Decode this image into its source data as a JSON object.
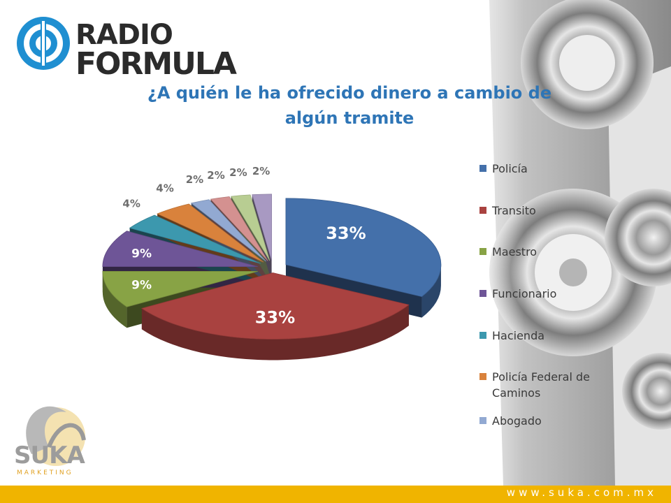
{
  "brand": {
    "line1": "RADIO",
    "line2": "FORMULA"
  },
  "title_lines": [
    "¿A quién le ha ofrecido dinero a cambio de",
    "algún tramite"
  ],
  "suka": {
    "name": "SUKA",
    "sub": "MARKETING"
  },
  "footer": {
    "url": "www.suka.com.mx"
  },
  "chart_data": {
    "type": "pie",
    "title": "¿A quién le ha ofrecido dinero a cambio de algún tramite",
    "categories": [
      "Policía",
      "Transito",
      "Maestro",
      "Funcionario",
      "Hacienda",
      "Policía Federal de Caminos",
      "Abogado",
      "",
      "",
      ""
    ],
    "values": [
      33,
      33,
      9,
      9,
      4,
      4,
      2,
      2,
      2,
      2
    ],
    "data_labels": [
      "33%",
      "33%",
      "9%",
      "9%",
      "4%",
      "4%",
      "2%",
      "2%",
      "2%",
      "2%"
    ],
    "legend_entries": [
      "Policía",
      "Transito",
      "Maestro",
      "Funcionario",
      "Hacienda",
      "Policía Federal de Caminos",
      "Abogado"
    ],
    "colors": [
      "#4470aa",
      "#a94240",
      "#88a345",
      "#6e5597",
      "#3c98ae",
      "#d9823c",
      "#92a9d2",
      "#d49190",
      "#b8cd92",
      "#a899c2"
    ],
    "legend_placement": "right",
    "style": "3d-exploded"
  }
}
